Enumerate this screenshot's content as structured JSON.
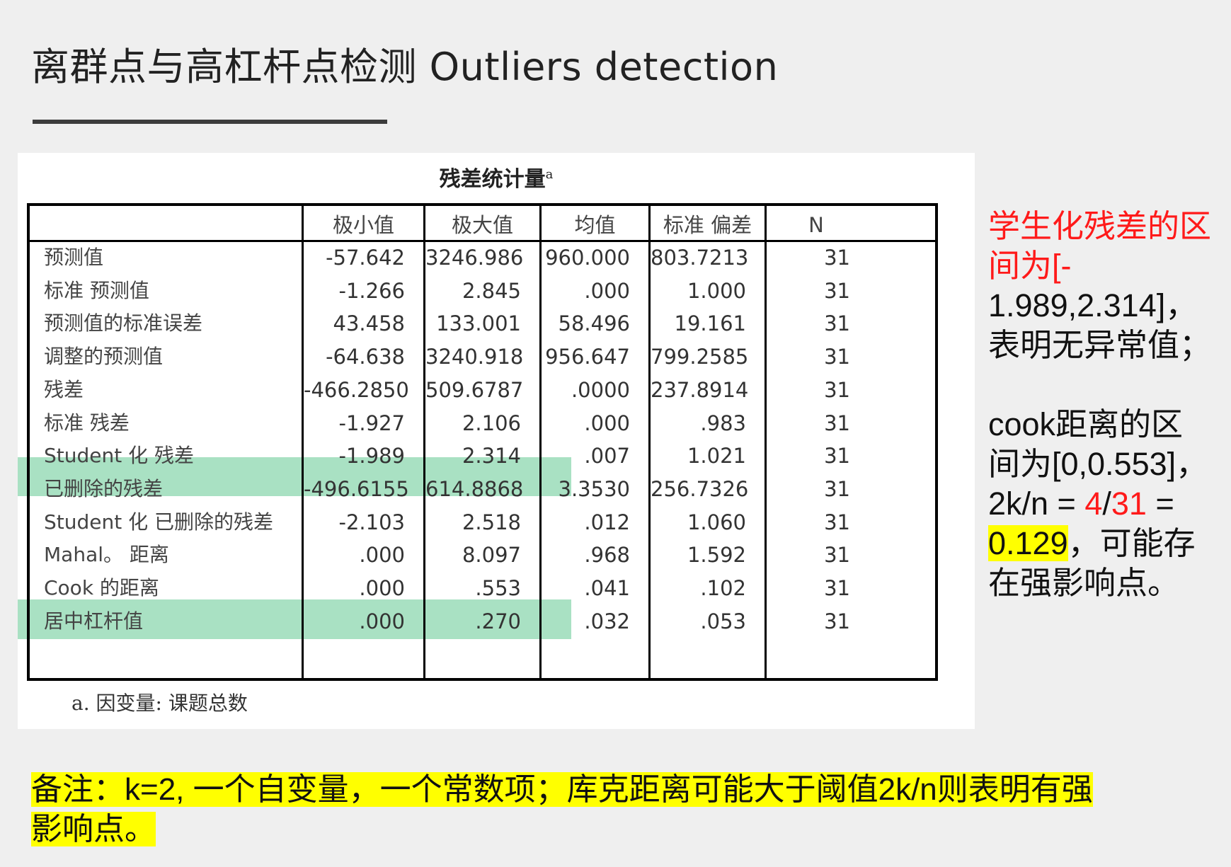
{
  "slide": {
    "title": "离群点与高杠杆点检测 Outliers detection"
  },
  "table": {
    "caption": "残差统计量",
    "caption_sup": "a",
    "headers": [
      "极小值",
      "极大值",
      "均值",
      "标准 偏差",
      "N"
    ],
    "rows": [
      {
        "label": "预测值",
        "values": [
          "-57.642",
          "3246.986",
          "960.000",
          "803.7213",
          "31"
        ]
      },
      {
        "label": "标准 预测值",
        "values": [
          "-1.266",
          "2.845",
          ".000",
          "1.000",
          "31"
        ]
      },
      {
        "label": "预测值的标准误差",
        "values": [
          "43.458",
          "133.001",
          "58.496",
          "19.161",
          "31"
        ]
      },
      {
        "label": "调整的预测值",
        "values": [
          "-64.638",
          "3240.918",
          "956.647",
          "799.2585",
          "31"
        ]
      },
      {
        "label": "残差",
        "values": [
          "-466.2850",
          "509.6787",
          ".0000",
          "237.8914",
          "31"
        ]
      },
      {
        "label": "标准 残差",
        "values": [
          "-1.927",
          "2.106",
          ".000",
          ".983",
          "31"
        ]
      },
      {
        "label": "Student 化 残差",
        "values": [
          "-1.989",
          "2.314",
          ".007",
          "1.021",
          "31"
        ]
      },
      {
        "label": "已删除的残差",
        "values": [
          "-496.6155",
          "614.8868",
          "3.3530",
          "256.7326",
          "31"
        ]
      },
      {
        "label": "Student 化 已删除的残差",
        "values": [
          "-2.103",
          "2.518",
          ".012",
          "1.060",
          "31"
        ]
      },
      {
        "label": "Mahal。 距离",
        "values": [
          ".000",
          "8.097",
          ".968",
          "1.592",
          "31"
        ]
      },
      {
        "label": "Cook 的距离",
        "values": [
          ".000",
          ".553",
          ".041",
          ".102",
          "31"
        ]
      },
      {
        "label": "居中杠杆值",
        "values": [
          ".000",
          ".270",
          ".032",
          ".053",
          "31"
        ]
      }
    ],
    "footnote": "a. 因变量: 课题总数",
    "highlight_color": "#a9e1c3"
  },
  "side_note": {
    "p1_red": "学生化残差的区间为[-",
    "p1_rest_1": "1.989,2.314]，",
    "p1_rest_2": "表明无异常值；",
    "p2_line1": "cook距离的区",
    "p2_line2": "间为[0,0.553]，",
    "p2_eq_a": "2k/n = ",
    "p2_eq_red_a": "4",
    "p2_eq_slash": "/",
    "p2_eq_red_b": "31",
    "p2_eq_b": " =",
    "p2_value": "0.129",
    "p2_tail": "，可能存",
    "p2_tail2": "在强影响点。",
    "red_color": "#ff1a1a",
    "yellow_color": "#ffff00"
  },
  "bottom_note": {
    "text_line1": "备注：k=2, 一个自变量，一个常数项；库克距离可能大于阈值2k/n则表明有强",
    "text_line2": "影响点。"
  }
}
